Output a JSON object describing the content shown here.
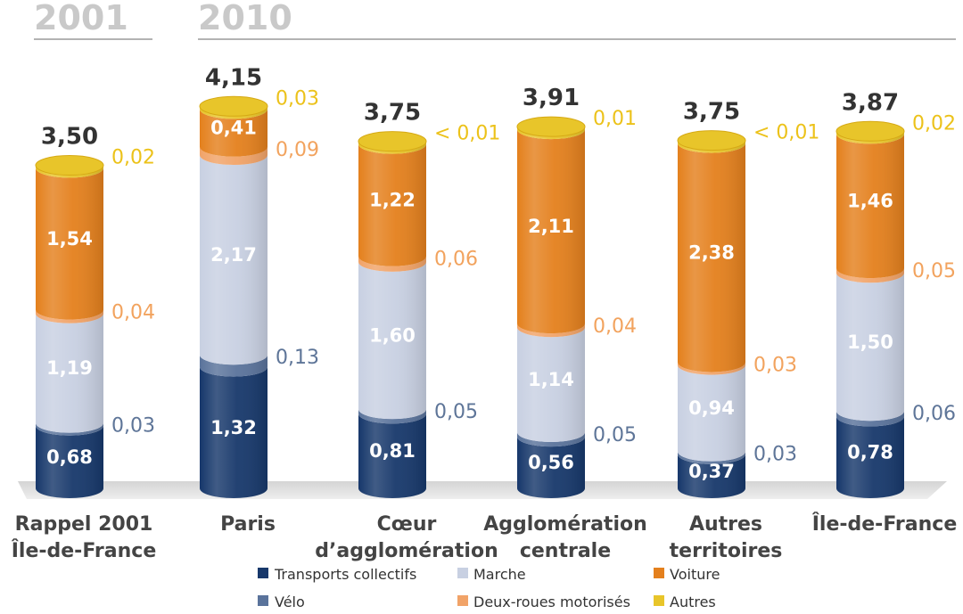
{
  "header": {
    "year_left": "2001",
    "year_right": "2010"
  },
  "legend": [
    {
      "key": "tc",
      "label": "Transports collectifs"
    },
    {
      "key": "marche",
      "label": "Marche"
    },
    {
      "key": "voiture",
      "label": "Voiture"
    },
    {
      "key": "velo",
      "label": "Vélo"
    },
    {
      "key": "drm",
      "label": "Deux-roues motorisés"
    },
    {
      "key": "autres",
      "label": "Autres"
    }
  ],
  "colors": {
    "tc": "#17386b",
    "velo": "#5a739b",
    "marche": "#c8d0e2",
    "drm": "#f1a368",
    "voiture": "#e4801d",
    "autres": "#e8c52a",
    "side_tc": "#2c4d80",
    "side_velo": "#5e7598",
    "side_marche": "#4a6590",
    "side_drm": "#f2a35e",
    "side_voiture": "#f2a35e",
    "side_autres": "#ecc21a"
  },
  "chart_data": {
    "type": "bar",
    "stacked": true,
    "categories": [
      [
        "Rappel 2001",
        "Île-de-France"
      ],
      [
        "Paris"
      ],
      [
        "Cœur",
        "d’agglomération"
      ],
      [
        "Agglomération",
        "centrale"
      ],
      [
        "Autres",
        "territoires"
      ],
      [
        "Île-de-France"
      ]
    ],
    "totals": [
      "3,50",
      "4,15",
      "3,75",
      "3,91",
      "3,75",
      "3,87"
    ],
    "series": [
      {
        "key": "tc",
        "name": "Transports collectifs",
        "values": [
          0.68,
          1.32,
          0.81,
          0.56,
          0.37,
          0.78
        ],
        "labels": [
          "0,68",
          "1,32",
          "0,81",
          "0,56",
          "0,37",
          "0,78"
        ]
      },
      {
        "key": "velo",
        "name": "Vélo",
        "values": [
          0.03,
          0.13,
          0.05,
          0.05,
          0.03,
          0.06
        ],
        "labels": [
          "0,03",
          "0,13",
          "0,05",
          "0,05",
          "0,03",
          "0,06"
        ]
      },
      {
        "key": "marche",
        "name": "Marche",
        "values": [
          1.19,
          2.17,
          1.6,
          1.14,
          0.94,
          1.5
        ],
        "labels": [
          "1,19",
          "2,17",
          "1,60",
          "1,14",
          "0,94",
          "1,50"
        ]
      },
      {
        "key": "drm",
        "name": "Deux-roues motorisés",
        "values": [
          0.04,
          0.09,
          0.06,
          0.04,
          0.03,
          0.05
        ],
        "labels": [
          "0,04",
          "0,09",
          "0,06",
          "0,04",
          "0,03",
          "0,05"
        ]
      },
      {
        "key": "voiture",
        "name": "Voiture",
        "values": [
          1.54,
          0.41,
          1.22,
          2.11,
          2.38,
          1.46
        ],
        "labels": [
          "1,54",
          "0,41",
          "1,22",
          "2,11",
          "2,38",
          "1,46"
        ]
      },
      {
        "key": "autres",
        "name": "Autres",
        "values": [
          0.02,
          0.03,
          0.005,
          0.01,
          0.005,
          0.02
        ],
        "labels": [
          "0,02",
          "0,03",
          "< 0,01",
          "0,01",
          "< 0,01",
          "0,02"
        ]
      }
    ]
  }
}
